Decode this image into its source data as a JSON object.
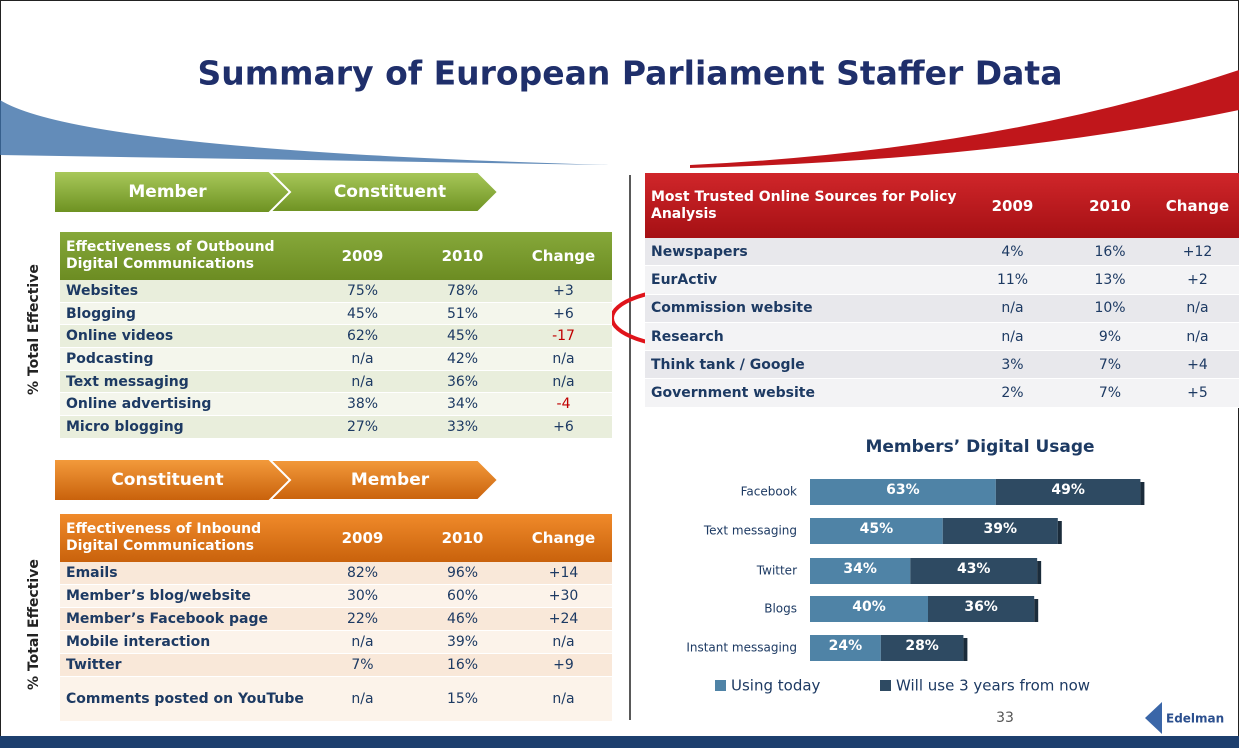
{
  "title": "Summary of European Parliament Staffer Data",
  "outbound": {
    "side_label": "% Total Effective",
    "arrow": [
      "Member",
      "Constituent"
    ],
    "header": [
      "Effectiveness of Outbound Digital Communications",
      "2009",
      "2010",
      "Change"
    ],
    "rows": [
      [
        "Websites",
        "75%",
        "78%",
        "+3"
      ],
      [
        "Blogging",
        "45%",
        "51%",
        "+6"
      ],
      [
        "Online videos",
        "62%",
        "45%",
        "-17"
      ],
      [
        "Podcasting",
        "n/a",
        "42%",
        "n/a"
      ],
      [
        "Text messaging",
        "n/a",
        "36%",
        "n/a"
      ],
      [
        "Online advertising",
        "38%",
        "34%",
        "-4"
      ],
      [
        "Micro blogging",
        "27%",
        "33%",
        "+6"
      ]
    ]
  },
  "inbound": {
    "side_label": "% Total Effective",
    "arrow": [
      "Constituent",
      "Member"
    ],
    "header": [
      "Effectiveness of Inbound Digital Communications",
      "2009",
      "2010",
      "Change"
    ],
    "rows": [
      [
        "Emails",
        "82%",
        "96%",
        "+14"
      ],
      [
        "Member’s blog/website",
        "30%",
        "60%",
        "+30"
      ],
      [
        "Member’s Facebook page",
        "22%",
        "46%",
        "+24"
      ],
      [
        "Mobile interaction",
        "n/a",
        "39%",
        "n/a"
      ],
      [
        "Twitter",
        "7%",
        "16%",
        "+9"
      ],
      [
        "Comments posted on YouTube",
        "n/a",
        "15%",
        "n/a"
      ]
    ]
  },
  "trusted": {
    "header": [
      "Most Trusted Online Sources for Policy Analysis",
      "2009",
      "2010",
      "Change"
    ],
    "rows": [
      [
        "Newspapers",
        "4%",
        "16%",
        "+12"
      ],
      [
        "EurActiv",
        "11%",
        "13%",
        "+2"
      ],
      [
        "Commission website",
        "n/a",
        "10%",
        "n/a"
      ],
      [
        "Research",
        "n/a",
        "9%",
        "n/a"
      ],
      [
        "Think tank / Google",
        "3%",
        "7%",
        "+4"
      ],
      [
        "Government website",
        "2%",
        "7%",
        "+5"
      ]
    ]
  },
  "chart_data": {
    "type": "bar",
    "title": "Members’ Digital Usage",
    "categories": [
      "Facebook",
      "Text messaging",
      "Twitter",
      "Blogs",
      "Instant messaging"
    ],
    "series": [
      {
        "name": "Using today",
        "color": "#4f83a6",
        "values": [
          63,
          45,
          34,
          40,
          24
        ],
        "value_labels": [
          "63%",
          "45%",
          "34%",
          "40%",
          "24%"
        ]
      },
      {
        "name": "Will use 3 years from now",
        "color": "#2e4a62",
        "values": [
          49,
          39,
          43,
          36,
          28
        ],
        "value_labels": [
          "49%",
          "39%",
          "43%",
          "36%",
          "28%"
        ]
      }
    ]
  },
  "footer": {
    "page": "33",
    "brand": "Edelman"
  }
}
